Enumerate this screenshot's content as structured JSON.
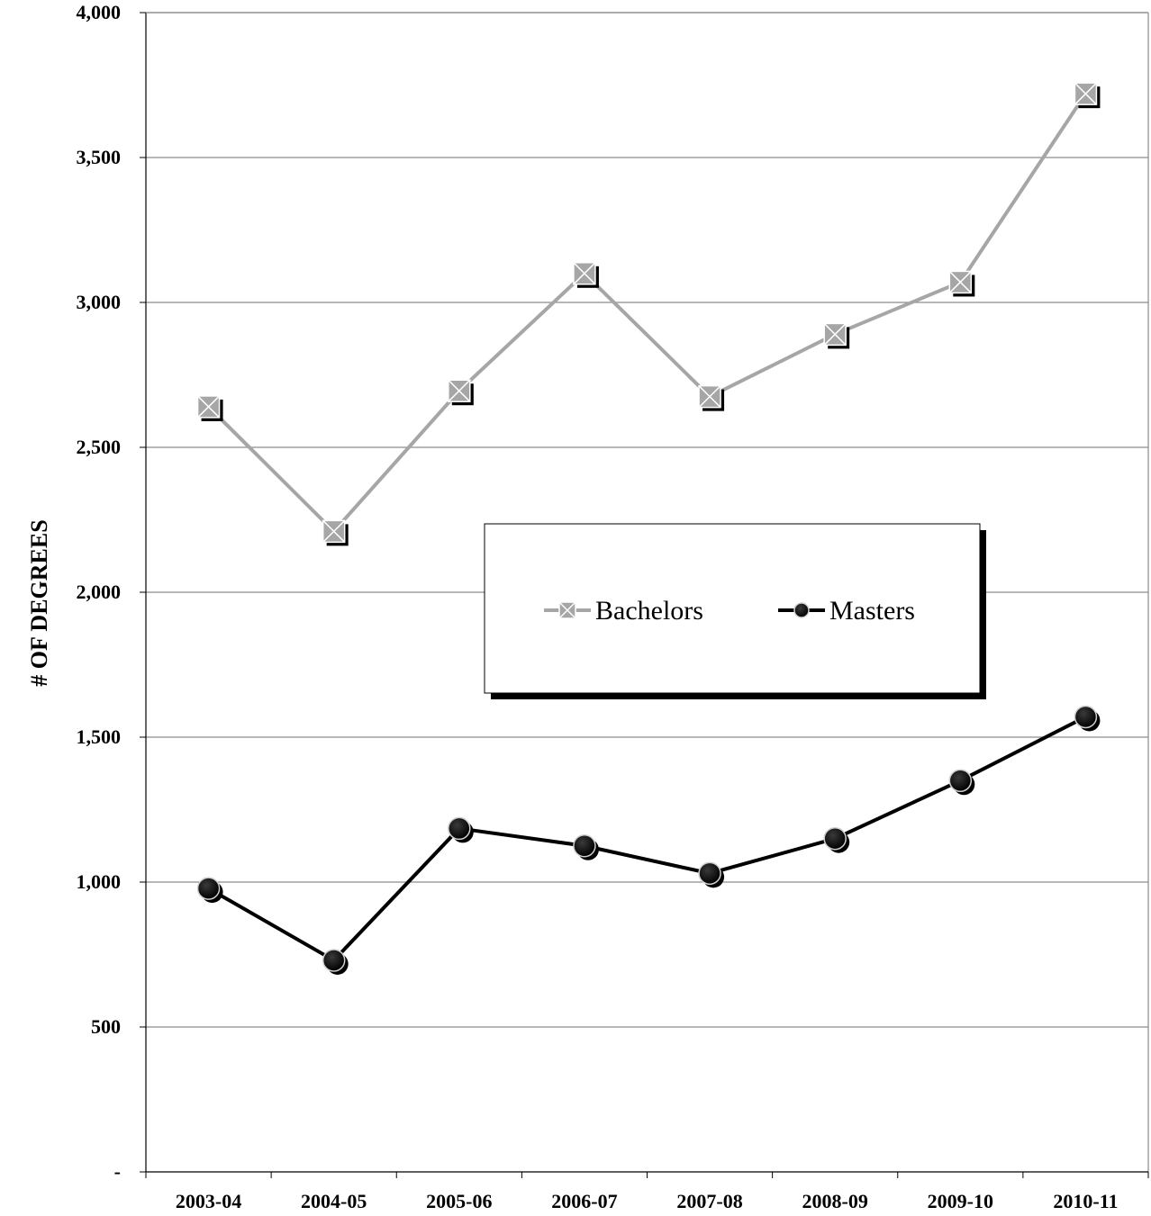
{
  "chart_data": {
    "type": "line",
    "categories": [
      "2003-04",
      "2004-05",
      "2005-06",
      "2006-07",
      "2007-08",
      "2008-09",
      "2009-10",
      "2010-11"
    ],
    "series": [
      {
        "name": "Bachelors",
        "values": [
          2640,
          2210,
          2695,
          3100,
          2675,
          2890,
          3070,
          3720
        ],
        "color": "#a6a6a6",
        "marker": "x-square"
      },
      {
        "name": "Masters",
        "values": [
          978,
          730,
          1185,
          1125,
          1030,
          1150,
          1350,
          1570
        ],
        "color": "#000000",
        "marker": "circle"
      }
    ],
    "ylabel": "# OF DEGREES",
    "ylim": [
      0,
      4000
    ],
    "yticks": [
      {
        "value": 0,
        "label": "-"
      },
      {
        "value": 500,
        "label": "500"
      },
      {
        "value": 1000,
        "label": "1,000"
      },
      {
        "value": 1500,
        "label": "1,500"
      },
      {
        "value": 2000,
        "label": "2,000"
      },
      {
        "value": 2500,
        "label": "2,500"
      },
      {
        "value": 3000,
        "label": "3,000"
      },
      {
        "value": 3500,
        "label": "3,500"
      },
      {
        "value": 4000,
        "label": "4,000"
      }
    ],
    "grid": true,
    "legend_position": "center"
  }
}
